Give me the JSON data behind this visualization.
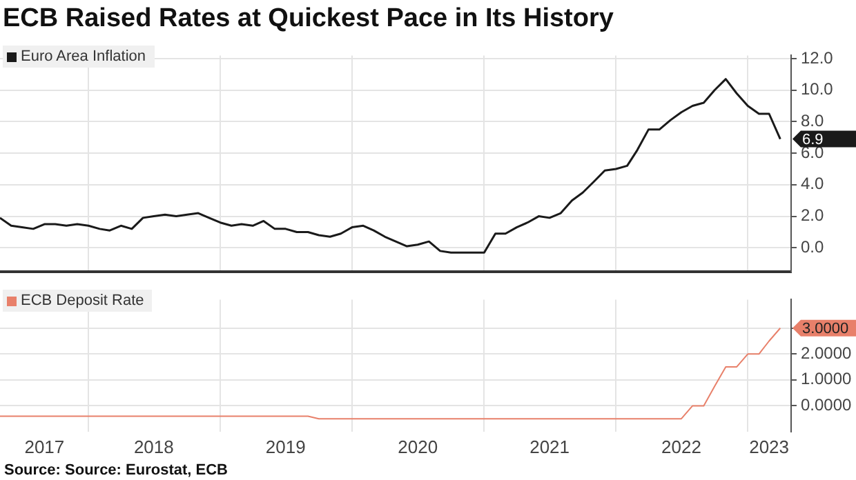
{
  "chart_data": [
    {
      "type": "line",
      "title": "ECB Raised Rates at Quickest Pace in Its History",
      "x": [
        "2017-05",
        "2017-06",
        "2017-07",
        "2017-08",
        "2017-09",
        "2017-10",
        "2017-11",
        "2017-12",
        "2018-01",
        "2018-02",
        "2018-03",
        "2018-04",
        "2018-05",
        "2018-06",
        "2018-07",
        "2018-08",
        "2018-09",
        "2018-10",
        "2018-11",
        "2018-12",
        "2019-01",
        "2019-02",
        "2019-03",
        "2019-04",
        "2019-05",
        "2019-06",
        "2019-07",
        "2019-08",
        "2019-09",
        "2019-10",
        "2019-11",
        "2019-12",
        "2020-01",
        "2020-02",
        "2020-03",
        "2020-04",
        "2020-05",
        "2020-06",
        "2020-07",
        "2020-08",
        "2020-09",
        "2020-10",
        "2020-11",
        "2020-12",
        "2021-01",
        "2021-02",
        "2021-03",
        "2021-04",
        "2021-05",
        "2021-06",
        "2021-07",
        "2021-08",
        "2021-09",
        "2021-10",
        "2021-11",
        "2021-12",
        "2022-01",
        "2022-02",
        "2022-03",
        "2022-04",
        "2022-05",
        "2022-06",
        "2022-07",
        "2022-08",
        "2022-09",
        "2022-10",
        "2022-11",
        "2022-12",
        "2023-01",
        "2023-02",
        "2023-03",
        "2023-04"
      ],
      "series": [
        {
          "name": "Euro Area Inflation",
          "color": "#1a1a1a",
          "values": [
            1.9,
            1.4,
            1.3,
            1.2,
            1.5,
            1.5,
            1.4,
            1.5,
            1.4,
            1.2,
            1.1,
            1.4,
            1.2,
            1.9,
            2.0,
            2.1,
            2.0,
            2.1,
            2.2,
            1.9,
            1.6,
            1.4,
            1.5,
            1.4,
            1.7,
            1.2,
            1.2,
            1.0,
            1.0,
            0.8,
            0.7,
            0.9,
            1.3,
            1.4,
            1.1,
            0.7,
            0.4,
            0.1,
            0.2,
            0.4,
            -0.2,
            -0.3,
            -0.3,
            -0.3,
            -0.3,
            0.9,
            0.9,
            1.3,
            1.6,
            2.0,
            1.9,
            2.2,
            3.0,
            3.5,
            4.2,
            4.9,
            5.0,
            5.2,
            6.2,
            7.5,
            7.5,
            8.1,
            8.6,
            9.0,
            9.2,
            10.0,
            10.7,
            9.8,
            9.0,
            8.5,
            8.5,
            6.9
          ],
          "value_labels": [
            null,
            null,
            null,
            null,
            null,
            null,
            null,
            null,
            null,
            null,
            null,
            null,
            null,
            null,
            null,
            null,
            null,
            null,
            null,
            null,
            null,
            null,
            null,
            null,
            null,
            null,
            null,
            null,
            null,
            null,
            null,
            null,
            null,
            null,
            null,
            null,
            null,
            null,
            null,
            null,
            null,
            null,
            null,
            null,
            null,
            null,
            null,
            null,
            null,
            null,
            null,
            null,
            null,
            null,
            null,
            null,
            null,
            null,
            null,
            null,
            null,
            null,
            null,
            null,
            null,
            null,
            null,
            null,
            null,
            null,
            null,
            "6.9"
          ]
        }
      ],
      "xlim": [
        "2017-05",
        "2023-05"
      ],
      "xticks": [
        {
          "value": "2018",
          "label": null
        },
        {
          "value": "2019",
          "label": null
        },
        {
          "value": "2020",
          "label": null
        },
        {
          "value": "2021",
          "label": null
        },
        {
          "value": "2022",
          "label": null
        },
        {
          "value": "2023",
          "label": null
        }
      ],
      "ylim": [
        -1.5,
        12.2
      ],
      "yticks": [
        {
          "value": 0,
          "label": "0.0"
        },
        {
          "value": 2,
          "label": "2.0"
        },
        {
          "value": 4,
          "label": "4.0"
        },
        {
          "value": 6,
          "label": "6.0"
        },
        {
          "value": 8,
          "label": "8.0"
        },
        {
          "value": 10,
          "label": "10.0"
        },
        {
          "value": 12,
          "label": "12.0"
        }
      ],
      "grid": true,
      "legend": "top left",
      "tick_labels": "y",
      "marker": "none"
    },
    {
      "type": "line",
      "series": [
        {
          "name": "ECB Deposit Rate",
          "color": "#e8806a",
          "x": [
            "2017-05",
            "2019-09",
            "2019-10",
            "2022-07",
            "2022-08",
            "2022-09",
            "2022-10",
            "2022-11",
            "2022-12",
            "2023-01",
            "2023-02",
            "2023-03",
            "2023-04"
          ],
          "values": [
            -0.4,
            -0.4,
            -0.5,
            -0.5,
            0,
            0,
            0.75,
            1.5,
            1.5,
            2,
            2,
            2.5,
            3
          ],
          "value_labels": [
            null,
            null,
            null,
            null,
            null,
            null,
            null,
            null,
            null,
            null,
            null,
            null,
            "3.0000"
          ]
        }
      ],
      "xlim": [
        "2017-05",
        "2023-05"
      ],
      "xticks": [
        {
          "value": "2017-09",
          "label": "2017"
        },
        {
          "value": "2018",
          "label": null
        },
        {
          "value": "2018-07",
          "label": "2018"
        },
        {
          "value": "2019",
          "label": null
        },
        {
          "value": "2019-07",
          "label": "2019"
        },
        {
          "value": "2020",
          "label": null
        },
        {
          "value": "2020-07",
          "label": "2020"
        },
        {
          "value": "2021",
          "label": null
        },
        {
          "value": "2021-07",
          "label": "2021"
        },
        {
          "value": "2022",
          "label": null
        },
        {
          "value": "2022-07",
          "label": "2022"
        },
        {
          "value": "2023",
          "label": null
        },
        {
          "value": "2023-03",
          "label": "2023"
        }
      ],
      "ylim": [
        -1,
        4.1
      ],
      "yticks": [
        {
          "value": 0,
          "label": "0.0000"
        },
        {
          "value": 1,
          "label": "1.0000"
        },
        {
          "value": 2,
          "label": "2.0000"
        },
        {
          "value": 3,
          "label": null
        }
      ],
      "grid": true,
      "legend": "top left",
      "marker": "none",
      "annotations": [
        "Source: Source: Eurostat, ECB"
      ]
    }
  ]
}
